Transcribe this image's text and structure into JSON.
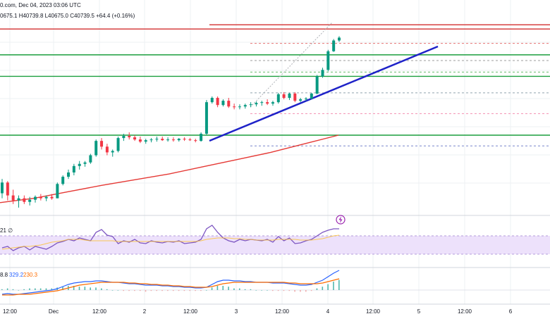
{
  "header": {
    "source_fragment": "0.com, Dec 04, 2023 03:06 UTC",
    "ohlc_text": "0675.1  H40739.8  L40675.0  C40739.5  +64.4 (+0.16%)"
  },
  "rsi_panel": {
    "settings_fragment": "21 ∅"
  },
  "macd_panel": {
    "values": [
      "8.8",
      "329.2",
      "230.3"
    ],
    "value_colors": [
      "#131722",
      "#2962ff",
      "#ff6d00"
    ]
  },
  "colors": {
    "up": "#089981",
    "down": "#f23645",
    "trendline": "#1e22c8",
    "support": "#1b9e3e",
    "resistance": "#d32f2f",
    "ma": "#e53935",
    "rsi": "#7e57c2",
    "rsi_band": "#ede1fb",
    "macd": "#2962ff",
    "signal": "#ff6d00"
  },
  "chart_data": {
    "type": "candlestick",
    "timeframe_labels": [
      "12:00",
      "Dec",
      "12:00",
      "2",
      "12:00",
      "3",
      "12:00",
      "4",
      "12:00",
      "5",
      "12:00",
      "6"
    ],
    "ohlc_approx": [
      [
        38450,
        38650,
        38380,
        38600
      ],
      [
        38600,
        38620,
        38350,
        38420
      ],
      [
        38420,
        38500,
        38300,
        38350
      ],
      [
        38350,
        38420,
        38250,
        38380
      ],
      [
        38380,
        38420,
        38300,
        38330
      ],
      [
        38330,
        38400,
        38280,
        38360
      ],
      [
        38360,
        38420,
        38320,
        38400
      ],
      [
        38400,
        38440,
        38350,
        38380
      ],
      [
        38380,
        38420,
        38340,
        38400
      ],
      [
        38400,
        38440,
        38360,
        38380
      ],
      [
        38380,
        38600,
        38380,
        38580
      ],
      [
        38580,
        38700,
        38560,
        38680
      ],
      [
        38680,
        38780,
        38650,
        38740
      ],
      [
        38740,
        38860,
        38700,
        38830
      ],
      [
        38830,
        38900,
        38780,
        38860
      ],
      [
        38860,
        38900,
        38820,
        38880
      ],
      [
        38880,
        39000,
        38860,
        38980
      ],
      [
        38980,
        39200,
        38960,
        39180
      ],
      [
        39180,
        39220,
        39060,
        39100
      ],
      [
        39100,
        39140,
        38980,
        39020
      ],
      [
        39020,
        39060,
        38960,
        39040
      ],
      [
        39040,
        39240,
        39020,
        39220
      ],
      [
        39220,
        39280,
        39180,
        39250
      ],
      [
        39250,
        39300,
        39200,
        39230
      ],
      [
        39230,
        39260,
        39180,
        39200
      ],
      [
        39200,
        39240,
        39150,
        39170
      ],
      [
        39170,
        39210,
        39140,
        39190
      ],
      [
        39190,
        39220,
        39160,
        39200
      ],
      [
        39200,
        39240,
        39170,
        39210
      ],
      [
        39210,
        39240,
        39180,
        39190
      ],
      [
        39190,
        39230,
        39170,
        39200
      ],
      [
        39200,
        39230,
        39170,
        39190
      ],
      [
        39190,
        39220,
        39170,
        39210
      ],
      [
        39210,
        39230,
        39180,
        39200
      ],
      [
        39200,
        39220,
        39180,
        39190
      ],
      [
        39190,
        39210,
        39160,
        39180
      ],
      [
        39180,
        39300,
        39170,
        39280
      ],
      [
        39280,
        39750,
        39260,
        39720
      ],
      [
        39720,
        39800,
        39700,
        39780
      ],
      [
        39780,
        39800,
        39650,
        39680
      ],
      [
        39680,
        39760,
        39660,
        39740
      ],
      [
        39740,
        39780,
        39640,
        39660
      ],
      [
        39660,
        39700,
        39620,
        39650
      ],
      [
        39650,
        39690,
        39620,
        39660
      ],
      [
        39660,
        39700,
        39630,
        39680
      ],
      [
        39680,
        39720,
        39650,
        39690
      ],
      [
        39690,
        39730,
        39660,
        39710
      ],
      [
        39710,
        39740,
        39670,
        39720
      ],
      [
        39720,
        39760,
        39680,
        39700
      ],
      [
        39700,
        39740,
        39670,
        39720
      ],
      [
        39720,
        39850,
        39700,
        39830
      ],
      [
        39830,
        39860,
        39760,
        39780
      ],
      [
        39780,
        39850,
        39750,
        39840
      ],
      [
        39840,
        39860,
        39720,
        39740
      ],
      [
        39740,
        39780,
        39720,
        39760
      ],
      [
        39760,
        39790,
        39740,
        39770
      ],
      [
        39770,
        39850,
        39760,
        39840
      ],
      [
        39840,
        40100,
        39830,
        40080
      ],
      [
        40080,
        40200,
        40060,
        40170
      ],
      [
        40170,
        40450,
        40150,
        40430
      ],
      [
        40430,
        40600,
        40420,
        40580
      ],
      [
        40580,
        40640,
        40560,
        40620
      ]
    ],
    "ma_approx": [
      38320,
      38380,
      38470,
      38560,
      38640,
      38720,
      38820,
      38920,
      39020,
      39140,
      39260
    ],
    "horizontal_levels": [
      40740,
      40380,
      40080,
      39260
    ],
    "dashed_levels": [
      40540,
      40300,
      40140,
      39850,
      39560,
      39110
    ]
  }
}
